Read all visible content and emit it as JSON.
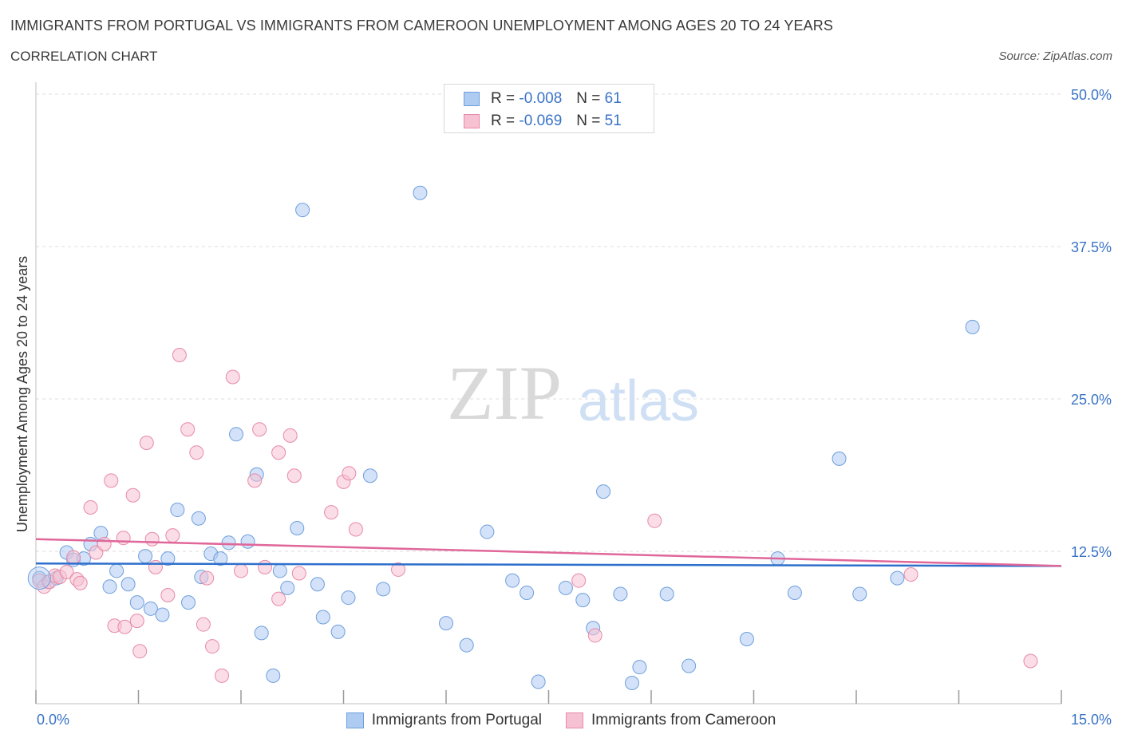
{
  "header": {
    "title": "IMMIGRANTS FROM PORTUGAL VS IMMIGRANTS FROM CAMEROON UNEMPLOYMENT AMONG AGES 20 TO 24 YEARS",
    "subtitle": "CORRELATION CHART",
    "source": "Source: ZipAtlas.com"
  },
  "watermark": {
    "zip": "ZIP",
    "atlas": "atlas"
  },
  "legend": {
    "rows": [
      {
        "r_label": "R =",
        "r_value": "-0.008",
        "n_label": "N =",
        "n_value": "61",
        "color": "#aecbf2"
      },
      {
        "r_label": "R =",
        "r_value": "-0.069",
        "n_label": "N =",
        "n_value": "51",
        "color": "#f6c1d2"
      }
    ]
  },
  "bottom_legend": [
    {
      "label": "Immigrants from Portugal",
      "color": "#aecbf2"
    },
    {
      "label": "Immigrants from Cameroon",
      "color": "#f6c1d2"
    }
  ],
  "colors": {
    "portugal_fill": "#aecbf2",
    "portugal_stroke": "#6f9fdc",
    "portugal_line": "#2e6fcc",
    "cameroon_fill": "#f6c1d2",
    "cameroon_stroke": "#e88aa8",
    "cameroon_line": "#e0679a",
    "tick_label": "#3a73c6",
    "grid": "#dcdcdc"
  },
  "chart_data": {
    "type": "scatter",
    "title": "IMMIGRANTS FROM PORTUGAL VS IMMIGRANTS FROM CAMEROON UNEMPLOYMENT AMONG AGES 20 TO 24 YEARS",
    "xlabel": "",
    "ylabel": "Unemployment Among Ages 20 to 24 years",
    "xlim": [
      0,
      15
    ],
    "ylim": [
      0,
      50
    ],
    "x_tick_labels": [
      "0.0%",
      "15.0%"
    ],
    "y_ticks": [
      12.5,
      25,
      37.5,
      50
    ],
    "y_tick_labels": [
      "12.5%",
      "25.0%",
      "37.5%",
      "50.0%"
    ],
    "grid": true,
    "legend_position": "top-center",
    "series": [
      {
        "name": "Immigrants from Portugal",
        "trend": {
          "x": [
            0,
            15
          ],
          "y": [
            11.5,
            11.3
          ]
        },
        "points": [
          [
            0.05,
            10.3
          ],
          [
            0.18,
            10.0
          ],
          [
            0.3,
            10.3
          ],
          [
            0.45,
            12.4
          ],
          [
            0.55,
            11.8
          ],
          [
            0.7,
            11.9
          ],
          [
            0.8,
            13.1
          ],
          [
            0.95,
            14.0
          ],
          [
            1.08,
            9.6
          ],
          [
            1.18,
            10.9
          ],
          [
            1.35,
            9.8
          ],
          [
            1.48,
            8.3
          ],
          [
            1.6,
            12.1
          ],
          [
            1.68,
            7.8
          ],
          [
            1.85,
            7.3
          ],
          [
            1.93,
            11.9
          ],
          [
            2.07,
            15.9
          ],
          [
            2.23,
            8.3
          ],
          [
            2.38,
            15.2
          ],
          [
            2.42,
            10.4
          ],
          [
            2.56,
            12.3
          ],
          [
            2.7,
            11.9
          ],
          [
            2.82,
            13.2
          ],
          [
            2.93,
            22.1
          ],
          [
            3.1,
            13.3
          ],
          [
            3.23,
            18.8
          ],
          [
            3.3,
            5.8
          ],
          [
            3.47,
            2.3
          ],
          [
            3.57,
            10.9
          ],
          [
            3.68,
            9.5
          ],
          [
            3.82,
            14.4
          ],
          [
            3.9,
            40.5
          ],
          [
            4.12,
            9.8
          ],
          [
            4.2,
            7.1
          ],
          [
            4.42,
            5.9
          ],
          [
            4.57,
            8.7
          ],
          [
            4.89,
            18.7
          ],
          [
            5.08,
            9.4
          ],
          [
            5.62,
            41.9
          ],
          [
            6.0,
            6.6
          ],
          [
            6.3,
            4.8
          ],
          [
            6.6,
            14.1
          ],
          [
            6.97,
            10.1
          ],
          [
            7.18,
            9.1
          ],
          [
            7.35,
            1.8
          ],
          [
            7.75,
            9.5
          ],
          [
            8.0,
            8.5
          ],
          [
            8.15,
            6.2
          ],
          [
            8.3,
            17.4
          ],
          [
            8.55,
            9.0
          ],
          [
            8.72,
            1.7
          ],
          [
            8.83,
            3.0
          ],
          [
            9.23,
            9.0
          ],
          [
            9.55,
            3.1
          ],
          [
            10.4,
            5.3
          ],
          [
            10.85,
            11.9
          ],
          [
            11.1,
            9.1
          ],
          [
            11.75,
            20.1
          ],
          [
            12.05,
            9.0
          ],
          [
            12.6,
            10.3
          ],
          [
            13.7,
            30.9
          ]
        ]
      },
      {
        "name": "Immigrants from Cameroon",
        "trend": {
          "x": [
            0,
            15
          ],
          "y": [
            13.5,
            11.3
          ]
        },
        "points": [
          [
            0.05,
            10.1
          ],
          [
            0.12,
            9.6
          ],
          [
            0.2,
            10.0
          ],
          [
            0.28,
            10.5
          ],
          [
            0.35,
            10.4
          ],
          [
            0.45,
            10.8
          ],
          [
            0.55,
            12.0
          ],
          [
            0.6,
            10.2
          ],
          [
            0.65,
            9.9
          ],
          [
            0.8,
            16.1
          ],
          [
            0.88,
            12.4
          ],
          [
            1.0,
            13.1
          ],
          [
            1.1,
            18.3
          ],
          [
            1.15,
            6.4
          ],
          [
            1.28,
            13.6
          ],
          [
            1.3,
            6.3
          ],
          [
            1.42,
            17.1
          ],
          [
            1.48,
            6.8
          ],
          [
            1.52,
            4.3
          ],
          [
            1.62,
            21.4
          ],
          [
            1.7,
            13.5
          ],
          [
            1.75,
            11.2
          ],
          [
            1.93,
            8.9
          ],
          [
            2.0,
            13.8
          ],
          [
            2.1,
            28.6
          ],
          [
            2.22,
            22.5
          ],
          [
            2.35,
            20.6
          ],
          [
            2.45,
            6.5
          ],
          [
            2.5,
            10.3
          ],
          [
            2.58,
            4.7
          ],
          [
            2.72,
            2.3
          ],
          [
            2.88,
            26.8
          ],
          [
            3.0,
            10.9
          ],
          [
            3.2,
            18.3
          ],
          [
            3.27,
            22.5
          ],
          [
            3.35,
            11.2
          ],
          [
            3.55,
            20.6
          ],
          [
            3.55,
            8.6
          ],
          [
            3.72,
            22.0
          ],
          [
            3.78,
            18.7
          ],
          [
            3.85,
            10.7
          ],
          [
            4.32,
            15.7
          ],
          [
            4.5,
            18.2
          ],
          [
            4.58,
            18.9
          ],
          [
            4.68,
            14.3
          ],
          [
            5.3,
            11.0
          ],
          [
            7.94,
            10.1
          ],
          [
            8.18,
            5.6
          ],
          [
            9.05,
            15.0
          ],
          [
            12.8,
            10.6
          ],
          [
            14.55,
            3.5
          ]
        ]
      }
    ]
  }
}
